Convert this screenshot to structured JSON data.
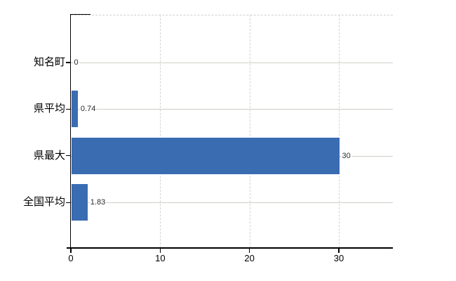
{
  "chart_data": {
    "type": "bar",
    "orientation": "horizontal",
    "title": "",
    "categories": [
      "知名町",
      "県平均",
      "県最大",
      "全国平均"
    ],
    "values": [
      0,
      0.74,
      30,
      1.83
    ],
    "value_labels": [
      "0",
      "0.74",
      "30",
      "1.83"
    ],
    "x_ticks": [
      0,
      10,
      20,
      30
    ],
    "x_tick_labels": [
      "0",
      "10",
      "20",
      "30"
    ],
    "xlim": [
      0,
      36
    ],
    "grid": true,
    "legend": false,
    "colors": {
      "bar": "#3a6cb2",
      "axis": "#000000",
      "row_gridline": "#cbd1c6",
      "tick_gridline": "#d6d2d2",
      "value_label": "#2b2b2b",
      "category_label": "#000000"
    }
  }
}
